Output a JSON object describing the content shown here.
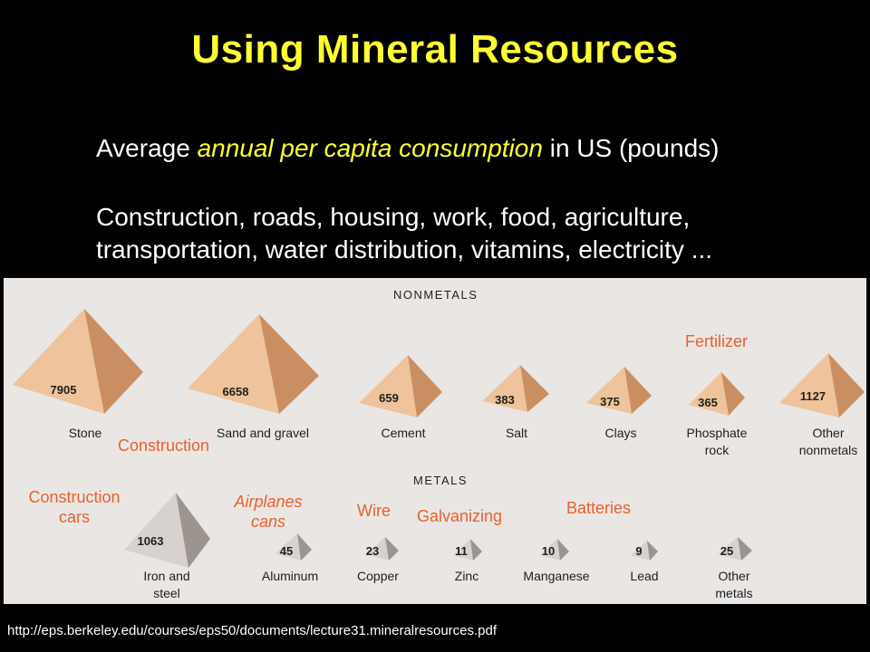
{
  "title": "Using Mineral Resources",
  "subtitle": {
    "prefix": "Average ",
    "highlight": "annual per capita consumption",
    "suffix": " in US (pounds)"
  },
  "uses_line1": "Construction, roads, housing, work, food, agriculture,",
  "uses_line2": "transportation, water distribution, vitamins, electricity ...",
  "figure": {
    "nonmetals_header": "NONMETALS",
    "metals_header": "METALS",
    "nonmetals": [
      {
        "label": "Stone",
        "value": "7905"
      },
      {
        "label": "Sand and gravel",
        "value": "6658"
      },
      {
        "label": "Cement",
        "value": "659"
      },
      {
        "label": "Salt",
        "value": "383"
      },
      {
        "label": "Clays",
        "value": "375"
      },
      {
        "label": "Phosphate rock",
        "value": "365"
      },
      {
        "label": "Other nonmetals",
        "value": "1127"
      }
    ],
    "metals": [
      {
        "label": "Iron and steel",
        "value": "1063"
      },
      {
        "label": "Aluminum",
        "value": "45"
      },
      {
        "label": "Copper",
        "value": "23"
      },
      {
        "label": "Zinc",
        "value": "11"
      },
      {
        "label": "Manganese",
        "value": "10"
      },
      {
        "label": "Lead",
        "value": "9"
      },
      {
        "label": "Other metals",
        "value": "25"
      }
    ],
    "annotations": {
      "fertilizer": "Fertilizer",
      "construction": "Construction",
      "construction_cars": "Construction cars",
      "airplanes_cans": "Airplanes cans",
      "wire": "Wire",
      "galvanizing": "Galvanizing",
      "batteries": "Batteries"
    }
  },
  "source_url": "http://eps.berkeley.edu/courses/eps50/documents/lecture31.mineralresources.pdf",
  "colors": {
    "title": "#ffff33",
    "nonmetal_light": "#efc39b",
    "nonmetal_dark": "#c98f63",
    "metal_light": "#d8d2ce",
    "metal_dark": "#9c948f",
    "annotation": "#e8622c"
  }
}
